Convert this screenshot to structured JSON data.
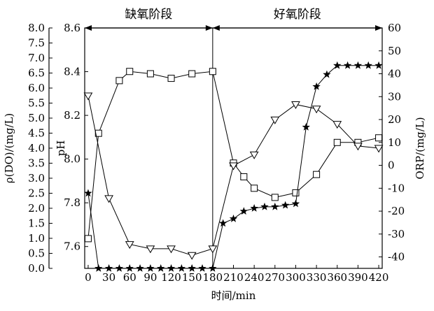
{
  "chart_data": {
    "type": "line",
    "xlabel": "时间/min",
    "x_ticks": [
      0,
      30,
      60,
      90,
      120,
      150,
      180,
      210,
      240,
      270,
      300,
      330,
      360,
      390,
      420
    ],
    "xlim": [
      -5,
      425
    ],
    "y_left": {
      "label": "ρ(DO)/(mg/L)",
      "ticks": [
        0.0,
        0.5,
        1.0,
        1.5,
        2.0,
        2.5,
        3.0,
        3.5,
        4.0,
        4.5,
        5.0,
        5.5,
        6.0,
        6.5,
        7.0,
        7.5,
        8.0
      ],
      "tick_labels": [
        "0.0",
        "0.5",
        "1.0",
        "1.5",
        "2.0",
        "2.5",
        "3.0",
        "3.5",
        "4.0",
        "4.5",
        "5.0",
        "5.5",
        "6.0",
        "6.5",
        "7.0",
        "7.5",
        "8.0"
      ],
      "lim": [
        0.0,
        8.0
      ]
    },
    "y_ph": {
      "label": "pH",
      "ticks": [
        7.6,
        7.8,
        8.0,
        8.2,
        8.4,
        8.6
      ],
      "tick_labels": [
        "7.6",
        "7.8",
        "8.0",
        "8.2",
        "8.4",
        "8.6"
      ],
      "lim": [
        7.5,
        8.6
      ]
    },
    "y_right": {
      "label": "ORP/(mg/L)",
      "ticks": [
        -40,
        -30,
        -20,
        -10,
        0,
        10,
        20,
        30,
        40,
        50,
        60
      ],
      "tick_labels": [
        "-40",
        "-30",
        "-20",
        "-10",
        "0",
        "10",
        "20",
        "30",
        "40",
        "50",
        "60"
      ],
      "lim": [
        -45,
        60
      ]
    },
    "phases": [
      {
        "label": "缺氧阶段",
        "x_start": -5,
        "x_end": 180
      },
      {
        "label": "好氧阶段",
        "x_start": 180,
        "x_end": 425
      }
    ],
    "phase_divider_x": 180,
    "series": [
      {
        "axis": "right",
        "marker": "square",
        "x": [
          0,
          15,
          45,
          60,
          90,
          120,
          150,
          180,
          210,
          225,
          240,
          270,
          300,
          330,
          360,
          390,
          420
        ],
        "y": [
          -32,
          14,
          37,
          41,
          40,
          38,
          40,
          41,
          1,
          -5,
          -10,
          -14,
          -12,
          -4,
          10,
          10,
          12
        ]
      },
      {
        "axis": "ph",
        "marker": "triangle-down",
        "x": [
          0,
          30,
          60,
          90,
          120,
          150,
          180,
          210,
          240,
          270,
          300,
          330,
          360,
          390,
          420
        ],
        "y": [
          8.29,
          7.82,
          7.61,
          7.59,
          7.59,
          7.56,
          7.59,
          7.97,
          8.02,
          8.18,
          8.25,
          8.23,
          8.16,
          8.06,
          8.05
        ]
      },
      {
        "axis": "left",
        "marker": "star",
        "x": [
          0,
          15,
          30,
          45,
          60,
          75,
          90,
          105,
          120,
          135,
          150,
          165,
          180,
          195,
          210,
          225,
          240,
          255,
          270,
          285,
          300,
          315,
          330,
          345,
          360,
          375,
          390,
          405,
          420
        ],
        "y": [
          2.5,
          0.0,
          0.0,
          0.0,
          0.0,
          0.0,
          0.0,
          0.0,
          0.0,
          0.0,
          0.0,
          0.0,
          0.0,
          1.5,
          1.65,
          1.9,
          2.0,
          2.05,
          2.05,
          2.1,
          2.15,
          4.7,
          6.05,
          6.45,
          6.75,
          6.75,
          6.75,
          6.75,
          6.75
        ]
      }
    ],
    "grid": false,
    "legend": "none"
  }
}
